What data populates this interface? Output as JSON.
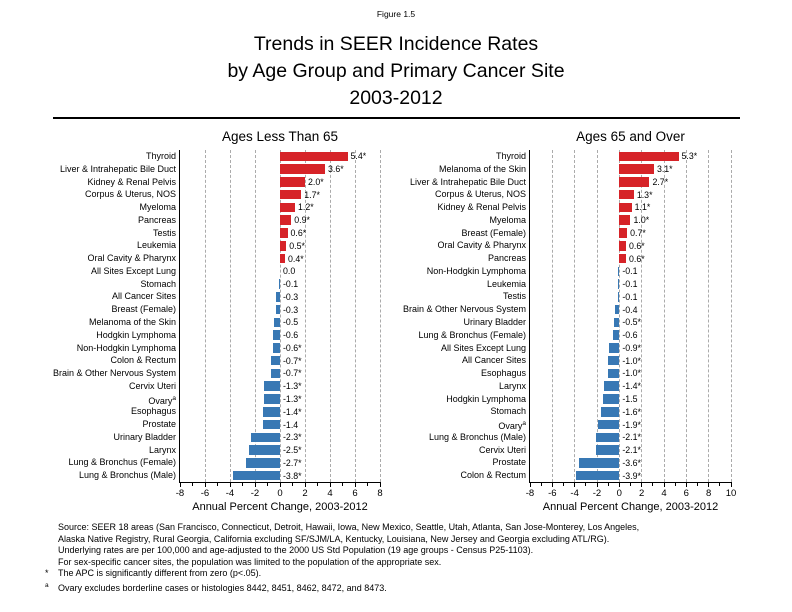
{
  "figure_label": "Figure 1.5",
  "title_lines": [
    "Trends in SEER Incidence Rates",
    "by Age Group and Primary Cancer Site",
    "2003-2012"
  ],
  "colors": {
    "positive": "#d62328",
    "negative": "#3878b4",
    "grid": "#ababab",
    "axis": "#000000"
  },
  "chart_data": [
    {
      "type": "bar",
      "orientation": "horizontal",
      "title": "Ages Less Than 65",
      "xlabel": "Annual Percent Change, 2003-2012",
      "xlim": [
        -8,
        8
      ],
      "xticks": [
        -8,
        -6,
        -4,
        -2,
        0,
        2,
        4,
        6,
        8
      ],
      "gridlines": [
        -6,
        -4,
        -2,
        0,
        2,
        4,
        6,
        8
      ],
      "grid": "dashed",
      "rows": [
        {
          "site": "Thyroid",
          "value": 5.4,
          "display": "5.4*"
        },
        {
          "site": "Liver & Intrahepatic Bile Duct",
          "value": 3.6,
          "display": "3.6*"
        },
        {
          "site": "Kidney & Renal Pelvis",
          "value": 2.0,
          "display": "2.0*"
        },
        {
          "site": "Corpus & Uterus, NOS",
          "value": 1.7,
          "display": "1.7*"
        },
        {
          "site": "Myeloma",
          "value": 1.2,
          "display": "1.2*"
        },
        {
          "site": "Pancreas",
          "value": 0.9,
          "display": "0.9*"
        },
        {
          "site": "Testis",
          "value": 0.6,
          "display": "0.6*"
        },
        {
          "site": "Leukemia",
          "value": 0.5,
          "display": "0.5*"
        },
        {
          "site": "Oral Cavity & Pharynx",
          "value": 0.4,
          "display": "0.4*"
        },
        {
          "site": "All Sites Except Lung",
          "value": 0.0,
          "display": "0.0"
        },
        {
          "site": "Stomach",
          "value": -0.1,
          "display": "-0.1"
        },
        {
          "site": "All Cancer Sites",
          "value": -0.3,
          "display": "-0.3"
        },
        {
          "site": "Breast (Female)",
          "value": -0.3,
          "display": "-0.3"
        },
        {
          "site": "Melanoma of the Skin",
          "value": -0.5,
          "display": "-0.5"
        },
        {
          "site": "Hodgkin Lymphoma",
          "value": -0.6,
          "display": "-0.6"
        },
        {
          "site": "Non-Hodgkin Lymphoma",
          "value": -0.6,
          "display": "-0.6*"
        },
        {
          "site": "Colon & Rectum",
          "value": -0.7,
          "display": "-0.7*"
        },
        {
          "site": "Brain & Other Nervous System",
          "value": -0.7,
          "display": "-0.7*"
        },
        {
          "site": "Cervix Uteri",
          "value": -1.3,
          "display": "-1.3*"
        },
        {
          "site": "Ovary",
          "sup": "a",
          "value": -1.3,
          "display": "-1.3*"
        },
        {
          "site": "Esophagus",
          "value": -1.4,
          "display": "-1.4*"
        },
        {
          "site": "Prostate",
          "value": -1.4,
          "display": "-1.4"
        },
        {
          "site": "Urinary Bladder",
          "value": -2.3,
          "display": "-2.3*"
        },
        {
          "site": "Larynx",
          "value": -2.5,
          "display": "-2.5*"
        },
        {
          "site": "Lung & Bronchus (Female)",
          "value": -2.7,
          "display": "-2.7*"
        },
        {
          "site": "Lung & Bronchus (Male)",
          "value": -3.8,
          "display": "-3.8*"
        }
      ]
    },
    {
      "type": "bar",
      "orientation": "horizontal",
      "title": "Ages 65 and Over",
      "xlabel": "Annual Percent Change, 2003-2012",
      "xlim": [
        -8,
        10
      ],
      "xticks": [
        -8,
        -6,
        -4,
        -2,
        0,
        2,
        4,
        6,
        8,
        10
      ],
      "gridlines": [
        -6,
        -4,
        -2,
        0,
        2,
        4,
        6,
        8,
        10
      ],
      "grid": "dashed",
      "rows": [
        {
          "site": "Thyroid",
          "value": 5.3,
          "display": "5.3*"
        },
        {
          "site": "Melanoma of the Skin",
          "value": 3.1,
          "display": "3.1*"
        },
        {
          "site": "Liver & Intrahepatic Bile Duct",
          "value": 2.7,
          "display": "2.7*"
        },
        {
          "site": "Corpus & Uterus, NOS",
          "value": 1.3,
          "display": "1.3*"
        },
        {
          "site": "Kidney & Renal Pelvis",
          "value": 1.1,
          "display": "1.1*"
        },
        {
          "site": "Myeloma",
          "value": 1.0,
          "display": "1.0*"
        },
        {
          "site": "Breast (Female)",
          "value": 0.7,
          "display": "0.7*"
        },
        {
          "site": "Oral Cavity & Pharynx",
          "value": 0.6,
          "display": "0.6*"
        },
        {
          "site": "Pancreas",
          "value": 0.6,
          "display": "0.6*"
        },
        {
          "site": "Non-Hodgkin Lymphoma",
          "value": -0.1,
          "display": "-0.1"
        },
        {
          "site": "Leukemia",
          "value": -0.1,
          "display": "-0.1"
        },
        {
          "site": "Testis",
          "value": -0.1,
          "display": "-0.1"
        },
        {
          "site": "Brain & Other Nervous System",
          "value": -0.4,
          "display": "-0.4"
        },
        {
          "site": "Urinary Bladder",
          "value": -0.5,
          "display": "-0.5*"
        },
        {
          "site": "Lung & Bronchus (Female)",
          "value": -0.6,
          "display": "-0.6"
        },
        {
          "site": "All Sites Except Lung",
          "value": -0.9,
          "display": "-0.9*"
        },
        {
          "site": "All Cancer Sites",
          "value": -1.0,
          "display": "-1.0*"
        },
        {
          "site": "Esophagus",
          "value": -1.0,
          "display": "-1.0*"
        },
        {
          "site": "Larynx",
          "value": -1.4,
          "display": "-1.4*"
        },
        {
          "site": "Hodgkin Lymphoma",
          "value": -1.5,
          "display": "-1.5"
        },
        {
          "site": "Stomach",
          "value": -1.6,
          "display": "-1.6*"
        },
        {
          "site": "Ovary",
          "sup": "a",
          "value": -1.9,
          "display": "-1.9*"
        },
        {
          "site": "Lung & Bronchus (Male)",
          "value": -2.1,
          "display": "-2.1*"
        },
        {
          "site": "Cervix Uteri",
          "value": -2.1,
          "display": "-2.1*"
        },
        {
          "site": "Prostate",
          "value": -3.6,
          "display": "-3.6*"
        },
        {
          "site": "Colon & Rectum",
          "value": -3.9,
          "display": "-3.9*"
        }
      ]
    }
  ],
  "footnotes": {
    "lines": [
      {
        "text": "Source: SEER 18 areas (San Francisco, Connecticut, Detroit, Hawaii, Iowa, New Mexico, Seattle, Utah, Atlanta, San Jose-Monterey, Los Angeles,"
      },
      {
        "text": "Alaska Native Registry, Rural Georgia, California excluding SF/SJM/LA, Kentucky, Louisiana, New Jersey and Georgia excluding ATL/RG)."
      },
      {
        "text": "Underlying rates are per 100,000 and age-adjusted to the 2000 US Std Population (19 age groups - Census P25-1103)."
      },
      {
        "text": "For sex-specific cancer sites, the population was limited to the population of the appropriate sex."
      },
      {
        "marker": "*",
        "text": "The APC is significantly different from zero (p<.05)."
      },
      {
        "marker": "a",
        "text": "Ovary excludes borderline cases or histologies 8442, 8451, 8462, 8472, and 8473."
      }
    ]
  }
}
